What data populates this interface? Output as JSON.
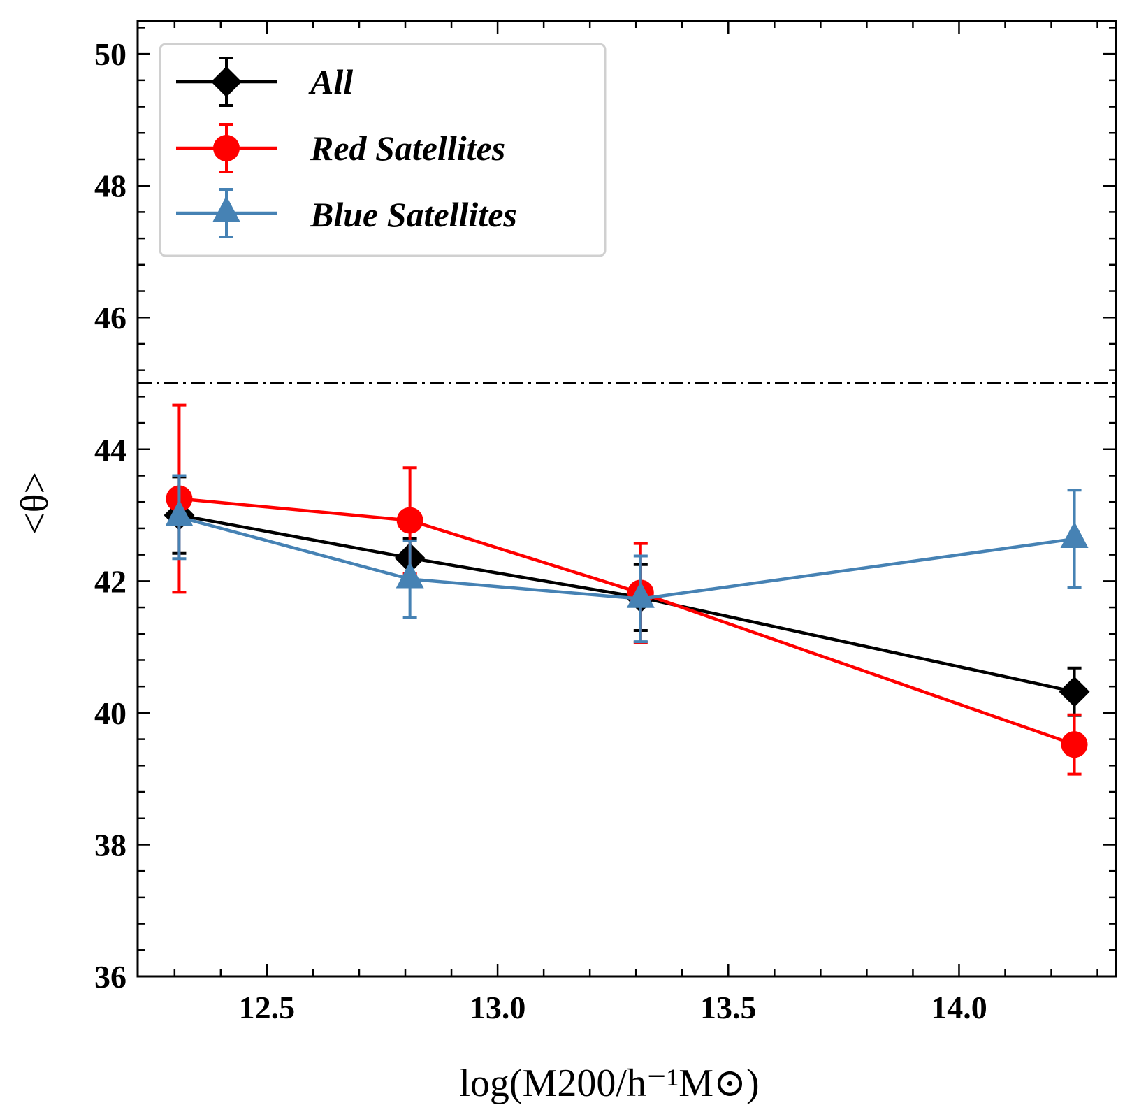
{
  "chart_data": {
    "type": "line",
    "xlabel": "log(M200/h⁻¹M⊙)",
    "ylabel": "<θ>",
    "xlim": [
      12.22,
      14.34
    ],
    "ylim": [
      36,
      50.5
    ],
    "x_ticks": [
      "12.5",
      "13.0",
      "13.5",
      "14.0"
    ],
    "y_ticks": [
      "36",
      "38",
      "40",
      "42",
      "44",
      "46",
      "48",
      "50"
    ],
    "reference_line": {
      "y": 45,
      "style": "dash-dot",
      "color": "#000000"
    },
    "legend_position": "upper-left",
    "series": [
      {
        "name": "All",
        "marker": "diamond",
        "color": "#000000",
        "x": [
          12.31,
          12.81,
          13.31,
          14.25
        ],
        "y": [
          43.0,
          42.35,
          41.75,
          40.32
        ],
        "yerr": [
          0.58,
          0.3,
          0.5,
          0.36
        ]
      },
      {
        "name": "Red Satellites",
        "marker": "circle",
        "color": "#ff0000",
        "x": [
          12.31,
          12.81,
          13.31,
          14.25
        ],
        "y": [
          43.25,
          42.92,
          41.82,
          39.52
        ],
        "yerr": [
          1.42,
          0.8,
          0.75,
          0.45
        ]
      },
      {
        "name": "Blue Satellites",
        "marker": "triangle",
        "color": "#4682b4",
        "x": [
          12.31,
          12.81,
          13.31,
          14.25
        ],
        "y": [
          42.97,
          42.03,
          41.73,
          42.64
        ],
        "yerr": [
          0.63,
          0.58,
          0.65,
          0.74
        ]
      }
    ]
  }
}
